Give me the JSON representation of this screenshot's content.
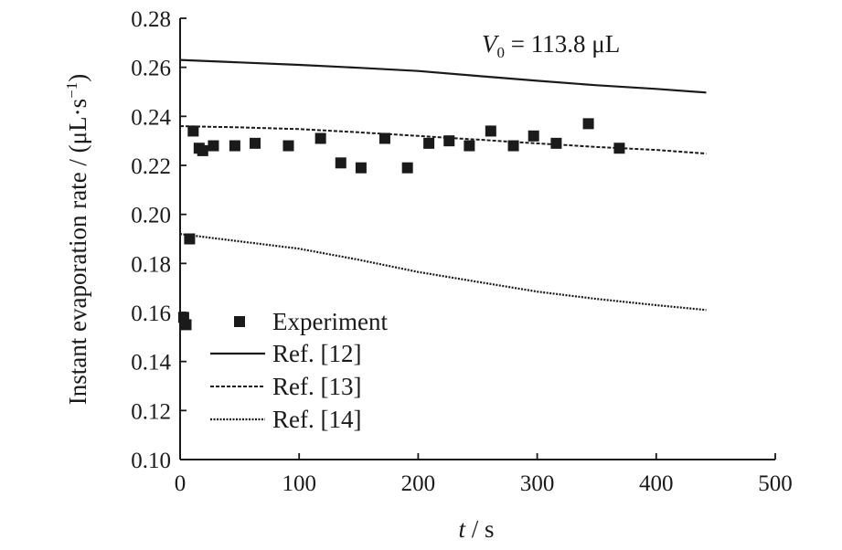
{
  "chart_data": {
    "type": "scatter",
    "xlabel": {
      "var": "t",
      "unit": " / s"
    },
    "ylabel": {
      "text": "Instant evaporation rate / (μL·s",
      "sup": "−1",
      "close": ")"
    },
    "annotation": {
      "var": "V",
      "sub": "0",
      "rest": " = 113.8 μL"
    },
    "xlim": [
      0,
      500
    ],
    "ylim": [
      0.1,
      0.28
    ],
    "xticks": [
      "0",
      "100",
      "200",
      "300",
      "400",
      "500"
    ],
    "yticks": [
      "0.10",
      "0.12",
      "0.14",
      "0.16",
      "0.18",
      "0.20",
      "0.22",
      "0.24",
      "0.26",
      "0.28"
    ],
    "grid": false,
    "legend_position": "lower-left",
    "series": [
      {
        "name": "Experiment",
        "style": "markers",
        "x": [
          3,
          5,
          8,
          11,
          16,
          19,
          28,
          46,
          63,
          91,
          118,
          135,
          152,
          172,
          191,
          209,
          226,
          243,
          261,
          280,
          297,
          316,
          343,
          369
        ],
        "y": [
          0.158,
          0.155,
          0.19,
          0.234,
          0.227,
          0.226,
          0.228,
          0.228,
          0.229,
          0.228,
          0.231,
          0.221,
          0.219,
          0.231,
          0.219,
          0.229,
          0.23,
          0.228,
          0.234,
          0.228,
          0.232,
          0.229,
          0.237,
          0.227
        ]
      },
      {
        "name": "Ref. [12]",
        "style": "solid",
        "x": [
          0,
          50,
          100,
          150,
          200,
          250,
          300,
          350,
          400,
          442
        ],
        "y": [
          0.263,
          0.262,
          0.261,
          0.2598,
          0.2585,
          0.2565,
          0.2545,
          0.2527,
          0.2512,
          0.2497
        ]
      },
      {
        "name": "Ref. [13]",
        "style": "dashed",
        "x": [
          0,
          50,
          100,
          150,
          200,
          250,
          300,
          350,
          400,
          442
        ],
        "y": [
          0.236,
          0.2355,
          0.2348,
          0.2335,
          0.232,
          0.2305,
          0.229,
          0.2275,
          0.2263,
          0.2248
        ]
      },
      {
        "name": "Ref. [14]",
        "style": "dotted",
        "x": [
          0,
          50,
          100,
          150,
          200,
          250,
          300,
          350,
          400,
          442
        ],
        "y": [
          0.192,
          0.189,
          0.186,
          0.1815,
          0.1765,
          0.1725,
          0.1685,
          0.1655,
          0.163,
          0.161
        ]
      }
    ]
  },
  "colors": {
    "ink": "#1a1a1a",
    "background": "#ffffff"
  }
}
